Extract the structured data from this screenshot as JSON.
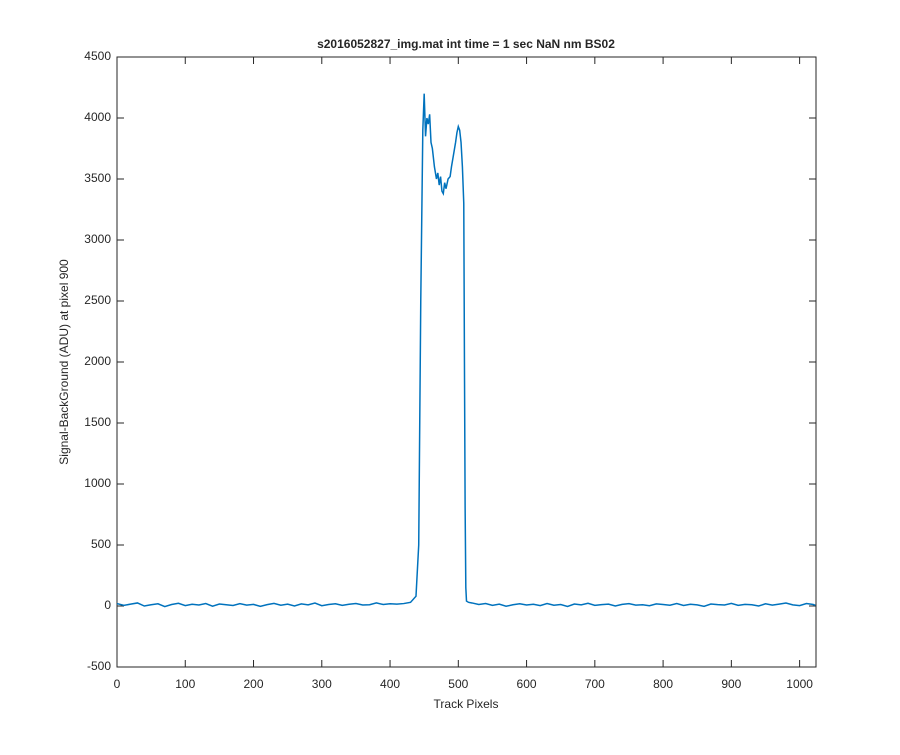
{
  "chart_data": {
    "type": "line",
    "title": "s2016052827_img.mat int time = 1 sec  NaN nm BS02",
    "xlabel": "Track Pixels",
    "ylabel": "Signal-BackGround (ADU) at pixel 900",
    "color": "#0072bd",
    "x": [
      0,
      10,
      20,
      30,
      40,
      50,
      60,
      70,
      80,
      90,
      100,
      110,
      120,
      130,
      140,
      150,
      160,
      170,
      180,
      190,
      200,
      210,
      220,
      230,
      240,
      250,
      260,
      270,
      280,
      290,
      300,
      310,
      320,
      330,
      340,
      350,
      360,
      370,
      380,
      390,
      400,
      410,
      420,
      430,
      438,
      442,
      445,
      448,
      450,
      452,
      454,
      456,
      458,
      460,
      462,
      465,
      468,
      470,
      472,
      474,
      476,
      478,
      480,
      482,
      485,
      488,
      490,
      493,
      496,
      498,
      500,
      502,
      504,
      506,
      508,
      509,
      510,
      511,
      512,
      515,
      520,
      530,
      540,
      550,
      560,
      570,
      580,
      590,
      600,
      610,
      620,
      630,
      640,
      650,
      660,
      670,
      680,
      690,
      700,
      710,
      720,
      730,
      740,
      750,
      760,
      770,
      780,
      790,
      800,
      810,
      820,
      830,
      840,
      850,
      860,
      870,
      880,
      890,
      900,
      910,
      920,
      930,
      940,
      950,
      960,
      970,
      980,
      990,
      1000,
      1010,
      1020,
      1023
    ],
    "values": [
      20,
      5,
      15,
      25,
      0,
      10,
      18,
      -5,
      12,
      22,
      3,
      14,
      8,
      20,
      -2,
      16,
      10,
      4,
      19,
      7,
      13,
      -3,
      11,
      21,
      6,
      15,
      0,
      17,
      9,
      24,
      2,
      12,
      18,
      5,
      14,
      20,
      8,
      10,
      25,
      12,
      18,
      15,
      20,
      30,
      80,
      500,
      2500,
      3900,
      4200,
      3850,
      4000,
      3950,
      4030,
      3800,
      3750,
      3600,
      3500,
      3550,
      3450,
      3520,
      3400,
      3380,
      3470,
      3420,
      3500,
      3520,
      3600,
      3700,
      3800,
      3880,
      3930,
      3900,
      3800,
      3600,
      3300,
      2000,
      800,
      150,
      40,
      30,
      25,
      12,
      20,
      5,
      15,
      -2,
      10,
      18,
      8,
      14,
      3,
      20,
      6,
      12,
      -4,
      16,
      9,
      22,
      5,
      11,
      15,
      0,
      13,
      19,
      7,
      10,
      2,
      17,
      12,
      6,
      20,
      4,
      14,
      9,
      -3,
      16,
      11,
      8,
      21,
      5,
      13,
      10,
      0,
      18,
      7,
      15,
      24,
      9,
      3,
      20,
      12,
      6
    ],
    "xlim": [
      0,
      1024
    ],
    "ylim": [
      -500,
      4500
    ],
    "xticks": [
      0,
      100,
      200,
      300,
      400,
      500,
      600,
      700,
      800,
      900,
      1000
    ],
    "yticks": [
      -500,
      0,
      500,
      1000,
      1500,
      2000,
      2500,
      3000,
      3500,
      4000,
      4500
    ]
  }
}
